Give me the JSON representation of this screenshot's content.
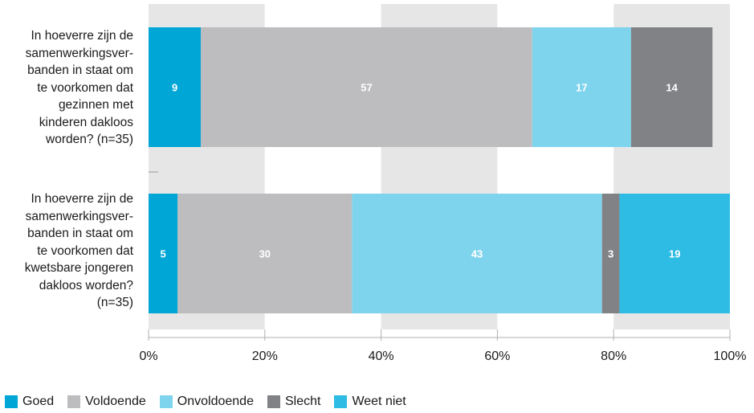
{
  "chart_data": {
    "type": "bar",
    "orientation": "horizontal",
    "stacked": true,
    "categories": [
      "In hoeverre zijn de samenwerkingsverbanden in staat om te voorkomen dat gezinnen met kinderen dakloos worden? (n=35)",
      "In hoeverre zijn de samenwerkingsverbanden in staat om te voorkomen dat kwetsbare jongeren dakloos worden? (n=35)"
    ],
    "category_lines": [
      [
        "In hoeverre zijn de",
        "samenwerkingsver-",
        "banden in staat om",
        "te voorkomen dat",
        "gezinnen met",
        "kinderen dakloos",
        "worden? (n=35)"
      ],
      [
        "In hoeverre zijn de",
        "samenwerkingsver-",
        "banden in staat om",
        "te voorkomen dat",
        "kwetsbare jongeren",
        "dakloos worden?",
        "(n=35)"
      ]
    ],
    "series": [
      {
        "name": "Goed",
        "color": "#00a6d6",
        "values": [
          9,
          5
        ]
      },
      {
        "name": "Voldoende",
        "color": "#bdbdbf",
        "values": [
          57,
          30
        ]
      },
      {
        "name": "Onvoldoende",
        "color": "#7fd4ed",
        "values": [
          17,
          43
        ]
      },
      {
        "name": "Slecht",
        "color": "#808285",
        "values": [
          14,
          3
        ]
      },
      {
        "name": "Weet niet",
        "color": "#2fbce4",
        "values": [
          0,
          19
        ]
      }
    ],
    "x_ticks": [
      "0%",
      "20%",
      "40%",
      "60%",
      "80%",
      "100%"
    ],
    "xlim": [
      0,
      100
    ],
    "grid": "alternating vertical bands",
    "legend_position": "bottom-left"
  }
}
